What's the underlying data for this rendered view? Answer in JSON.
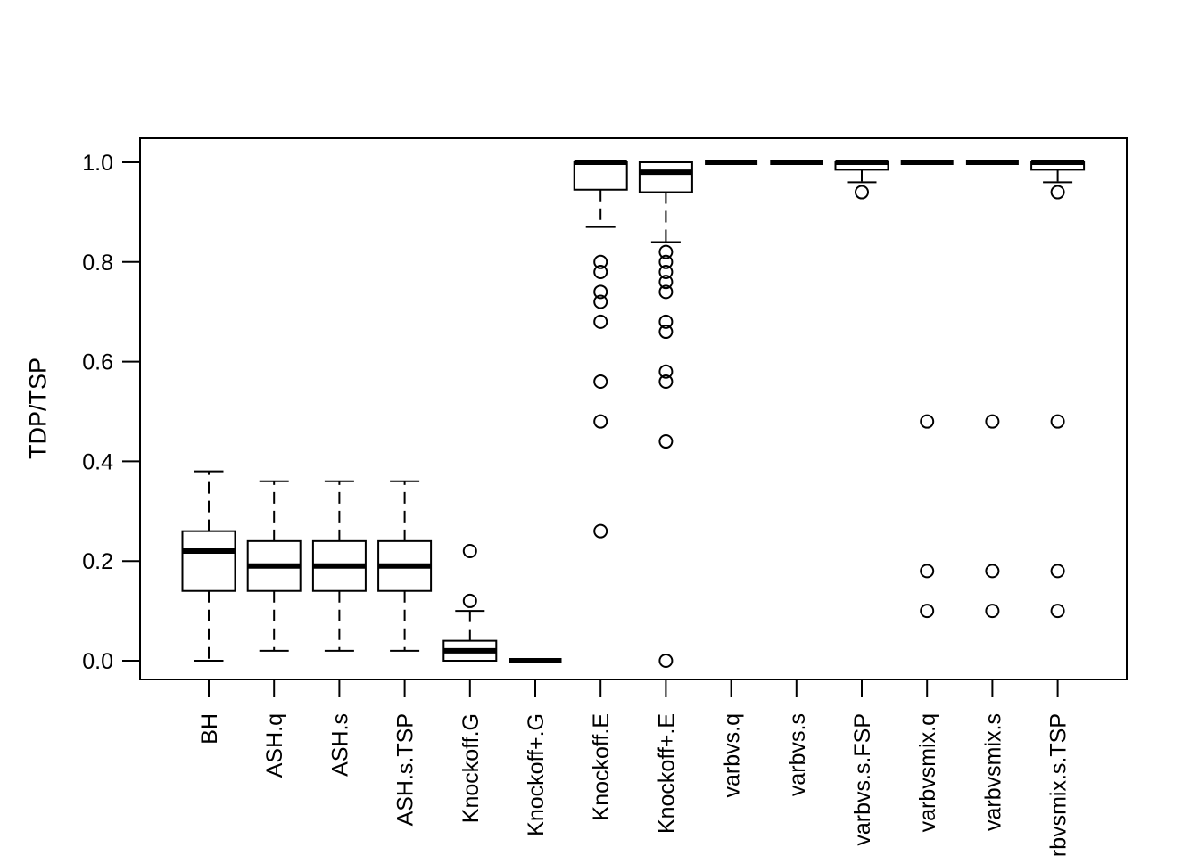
{
  "chart_data": {
    "type": "boxplot",
    "title": "",
    "xlabel": "",
    "ylabel": "TDP/TSP",
    "ylim": [
      0,
      1
    ],
    "yticks": [
      0.0,
      0.2,
      0.4,
      0.6,
      0.8,
      1.0
    ],
    "ytick_labels": [
      "0.0",
      "0.2",
      "0.4",
      "0.6",
      "0.8",
      "1.0"
    ],
    "grid": "off",
    "legend": "none",
    "x_label_rotation": 90,
    "categories": [
      "BH",
      "ASH.q",
      "ASH.s",
      "ASH.s.TSP",
      "Knockoff.G",
      "Knockoff+.G",
      "Knockoff.E",
      "Knockoff+.E",
      "varbvs.q",
      "varbvs.s",
      "varbvs.s.FSP",
      "varbvsmix.q",
      "varbvsmix.s",
      "varbvsmix.s.TSP"
    ],
    "boxes": [
      {
        "name": "BH",
        "whisker_low": 0.0,
        "q1": 0.14,
        "median": 0.22,
        "q3": 0.26,
        "whisker_high": 0.38,
        "outliers": []
      },
      {
        "name": "ASH.q",
        "whisker_low": 0.02,
        "q1": 0.14,
        "median": 0.19,
        "q3": 0.24,
        "whisker_high": 0.36,
        "outliers": []
      },
      {
        "name": "ASH.s",
        "whisker_low": 0.02,
        "q1": 0.14,
        "median": 0.19,
        "q3": 0.24,
        "whisker_high": 0.36,
        "outliers": []
      },
      {
        "name": "ASH.s.TSP",
        "whisker_low": 0.02,
        "q1": 0.14,
        "median": 0.19,
        "q3": 0.24,
        "whisker_high": 0.36,
        "outliers": []
      },
      {
        "name": "Knockoff.G",
        "whisker_low": 0.0,
        "q1": 0.0,
        "median": 0.02,
        "q3": 0.04,
        "whisker_high": 0.1,
        "outliers": [
          0.12,
          0.22
        ]
      },
      {
        "name": "Knockoff+.G",
        "whisker_low": 0.0,
        "q1": 0.0,
        "median": 0.0,
        "q3": 0.0,
        "whisker_high": 0.0,
        "outliers": []
      },
      {
        "name": "Knockoff.E",
        "whisker_low": 0.87,
        "q1": 0.945,
        "median": 1.0,
        "q3": 1.0,
        "whisker_high": 1.0,
        "outliers": [
          0.8,
          0.78,
          0.74,
          0.72,
          0.68,
          0.56,
          0.48,
          0.26
        ]
      },
      {
        "name": "Knockoff+.E",
        "whisker_low": 0.84,
        "q1": 0.94,
        "median": 0.98,
        "q3": 1.0,
        "whisker_high": 1.0,
        "outliers": [
          0.82,
          0.8,
          0.78,
          0.76,
          0.74,
          0.68,
          0.66,
          0.58,
          0.56,
          0.44,
          0.0
        ]
      },
      {
        "name": "varbvs.q",
        "whisker_low": 1.0,
        "q1": 1.0,
        "median": 1.0,
        "q3": 1.0,
        "whisker_high": 1.0,
        "outliers": []
      },
      {
        "name": "varbvs.s",
        "whisker_low": 1.0,
        "q1": 1.0,
        "median": 1.0,
        "q3": 1.0,
        "whisker_high": 1.0,
        "outliers": []
      },
      {
        "name": "varbvs.s.FSP",
        "whisker_low": 0.96,
        "q1": 0.985,
        "median": 1.0,
        "q3": 1.0,
        "whisker_high": 1.0,
        "outliers": [
          0.94
        ]
      },
      {
        "name": "varbvsmix.q",
        "whisker_low": 1.0,
        "q1": 1.0,
        "median": 1.0,
        "q3": 1.0,
        "whisker_high": 1.0,
        "outliers": [
          0.48,
          0.18,
          0.1
        ]
      },
      {
        "name": "varbvsmix.s",
        "whisker_low": 1.0,
        "q1": 1.0,
        "median": 1.0,
        "q3": 1.0,
        "whisker_high": 1.0,
        "outliers": [
          0.48,
          0.18,
          0.1
        ]
      },
      {
        "name": "varbvsmix.s.TSP",
        "whisker_low": 0.96,
        "q1": 0.985,
        "median": 1.0,
        "q3": 1.0,
        "whisker_high": 1.0,
        "outliers": [
          0.94,
          0.48,
          0.18,
          0.1
        ]
      }
    ]
  },
  "colors": {
    "foreground": "#000000",
    "background": "#ffffff"
  }
}
